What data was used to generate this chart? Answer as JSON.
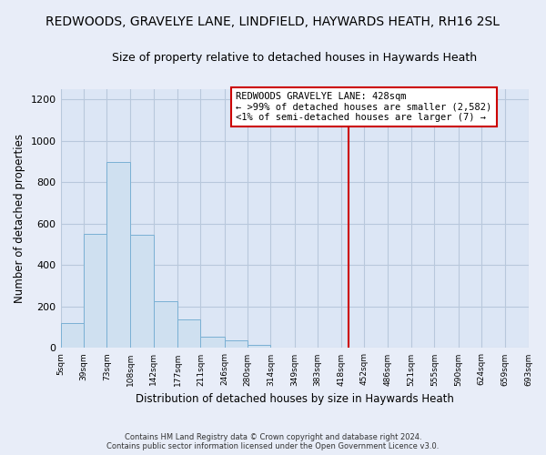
{
  "title": "REDWOODS, GRAVELYE LANE, LINDFIELD, HAYWARDS HEATH, RH16 2SL",
  "subtitle": "Size of property relative to detached houses in Haywards Heath",
  "xlabel": "Distribution of detached houses by size in Haywards Heath",
  "ylabel": "Number of detached properties",
  "bar_edges": [
    5,
    39,
    73,
    108,
    142,
    177,
    211,
    246,
    280,
    314,
    349,
    383,
    418,
    452,
    486,
    521,
    555,
    590,
    624,
    659,
    693
  ],
  "bar_heights": [
    120,
    550,
    900,
    545,
    225,
    140,
    55,
    35,
    15,
    0,
    0,
    0,
    0,
    0,
    0,
    0,
    0,
    0,
    0,
    0
  ],
  "bar_color": "#cfe0f0",
  "bar_edge_color": "#7ab0d4",
  "vline_x": 428,
  "vline_color": "#cc0000",
  "annotation_line1": "REDWOODS GRAVELYE LANE: 428sqm",
  "annotation_line2": "← >99% of detached houses are smaller (2,582)",
  "annotation_line3": "<1% of semi-detached houses are larger (7) →",
  "ylim": [
    0,
    1250
  ],
  "xlim": [
    5,
    693
  ],
  "xtick_labels": [
    "5sqm",
    "39sqm",
    "73sqm",
    "108sqm",
    "142sqm",
    "177sqm",
    "211sqm",
    "246sqm",
    "280sqm",
    "314sqm",
    "349sqm",
    "383sqm",
    "418sqm",
    "452sqm",
    "486sqm",
    "521sqm",
    "555sqm",
    "590sqm",
    "624sqm",
    "659sqm",
    "693sqm"
  ],
  "xtick_positions": [
    5,
    39,
    73,
    108,
    142,
    177,
    211,
    246,
    280,
    314,
    349,
    383,
    418,
    452,
    486,
    521,
    555,
    590,
    624,
    659,
    693
  ],
  "ytick_positions": [
    0,
    200,
    400,
    600,
    800,
    1000,
    1200
  ],
  "footer_line1": "Contains HM Land Registry data © Crown copyright and database right 2024.",
  "footer_line2": "Contains public sector information licensed under the Open Government Licence v3.0.",
  "background_color": "#e8edf8",
  "plot_bg_color": "#dce6f5",
  "title_fontsize": 10,
  "subtitle_fontsize": 9,
  "grid_color": "#b8c8dc"
}
